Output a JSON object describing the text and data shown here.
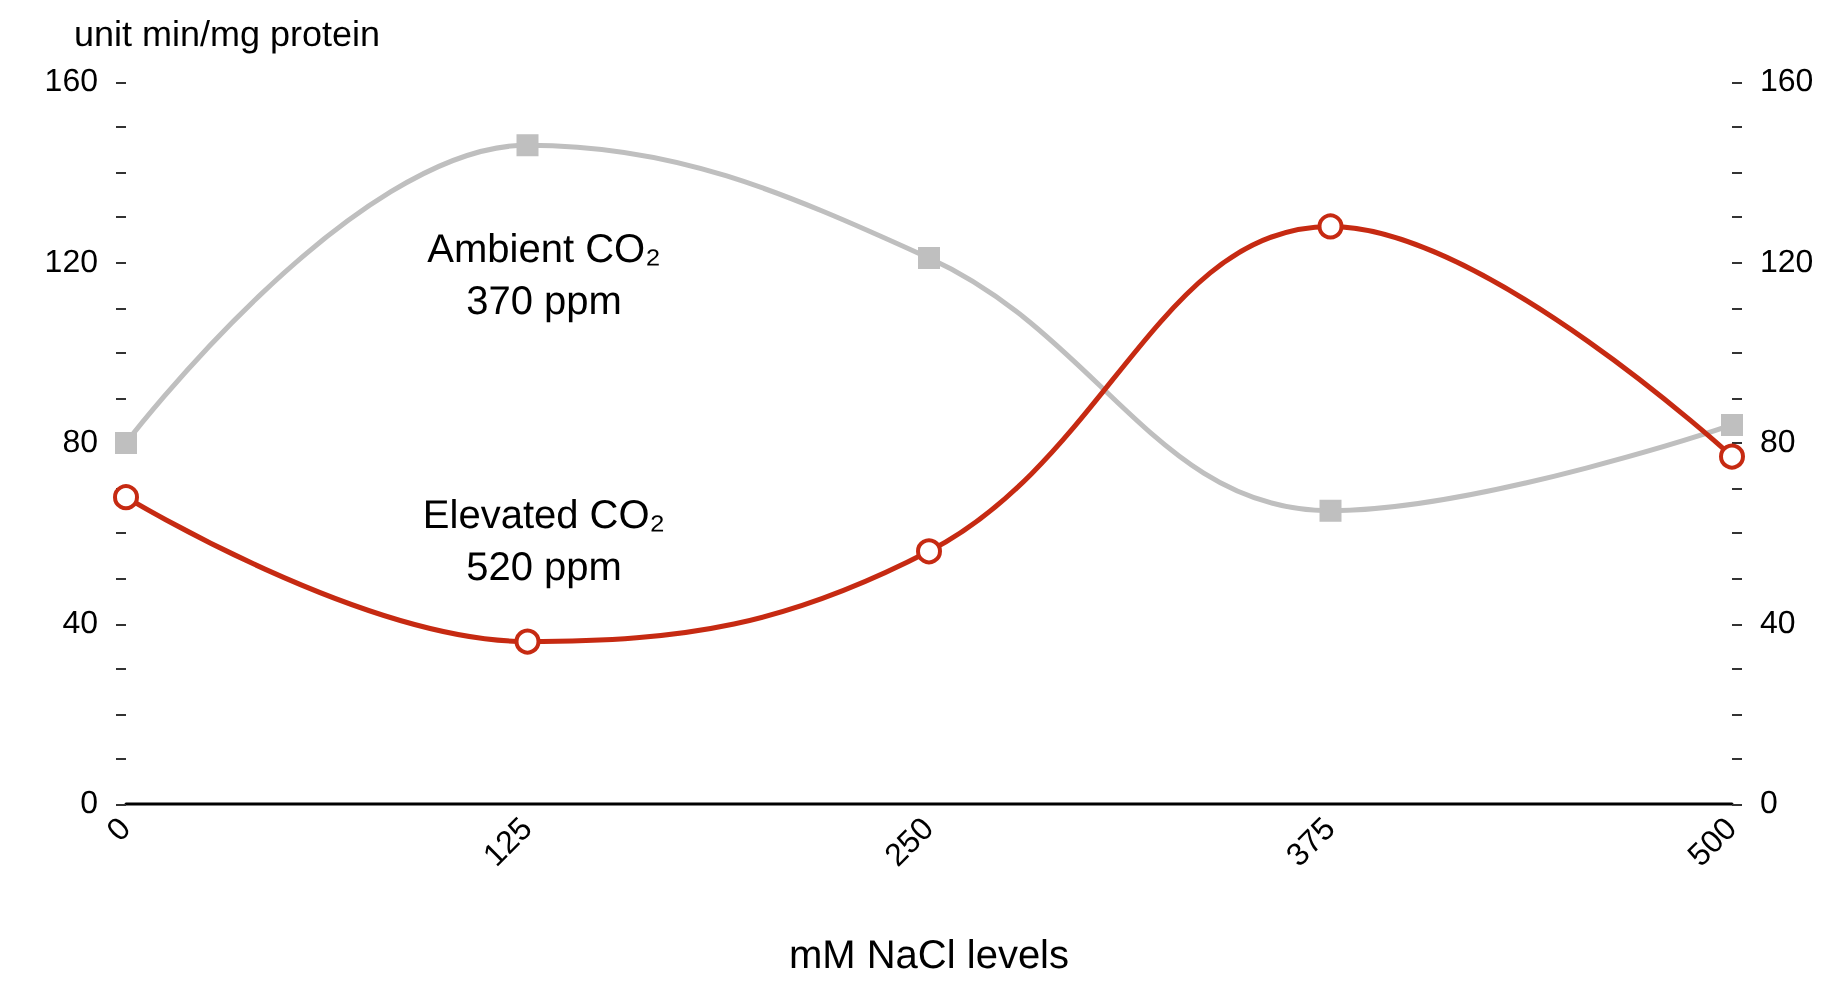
{
  "chart_data": {
    "type": "line",
    "xlabel": "mM NaCl levels",
    "ylabel": "unit min/mg protein",
    "x": [
      0,
      125,
      250,
      375,
      500
    ],
    "series": [
      {
        "color": "#bfbfbf",
        "marker": "square",
        "values": [
          80,
          146,
          121,
          65,
          84
        ]
      },
      {
        "color": "#c62a12",
        "marker": "circle",
        "values": [
          68,
          36,
          56,
          128,
          77
        ]
      }
    ],
    "annotations": [
      "Ambient CO₂\n370 ppm",
      "Elevated CO₂\n520 ppm"
    ],
    "xlim": [
      0,
      500
    ],
    "xticks": [
      0,
      125,
      250,
      375,
      500
    ],
    "ylim": [
      0,
      160
    ],
    "yticks": [
      0,
      {
        "value": 10,
        "label": null
      },
      {
        "value": 20,
        "label": null
      },
      {
        "value": 30,
        "label": null
      },
      40,
      {
        "value": 50,
        "label": null
      },
      {
        "value": 60,
        "label": null
      },
      {
        "value": 70,
        "label": null
      },
      80,
      {
        "value": 90,
        "label": null
      },
      {
        "value": 100,
        "label": null
      },
      {
        "value": 110,
        "label": null
      },
      120,
      {
        "value": 130,
        "label": null
      },
      {
        "value": 140,
        "label": null
      },
      {
        "value": 150,
        "label": null
      },
      160
    ],
    "y2lim": [
      0,
      160
    ],
    "y2ticks": [
      0,
      {
        "value": 10,
        "label": null
      },
      {
        "value": 20,
        "label": null
      },
      {
        "value": 30,
        "label": null
      },
      40,
      {
        "value": 50,
        "label": null
      },
      {
        "value": 60,
        "label": null
      },
      {
        "value": 70,
        "label": null
      },
      80,
      {
        "value": 90,
        "label": null
      },
      {
        "value": 100,
        "label": null
      },
      {
        "value": 110,
        "label": null
      },
      120,
      {
        "value": 130,
        "label": null
      },
      {
        "value": 140,
        "label": null
      },
      {
        "value": 150,
        "label": null
      },
      160
    ],
    "grid": false
  }
}
